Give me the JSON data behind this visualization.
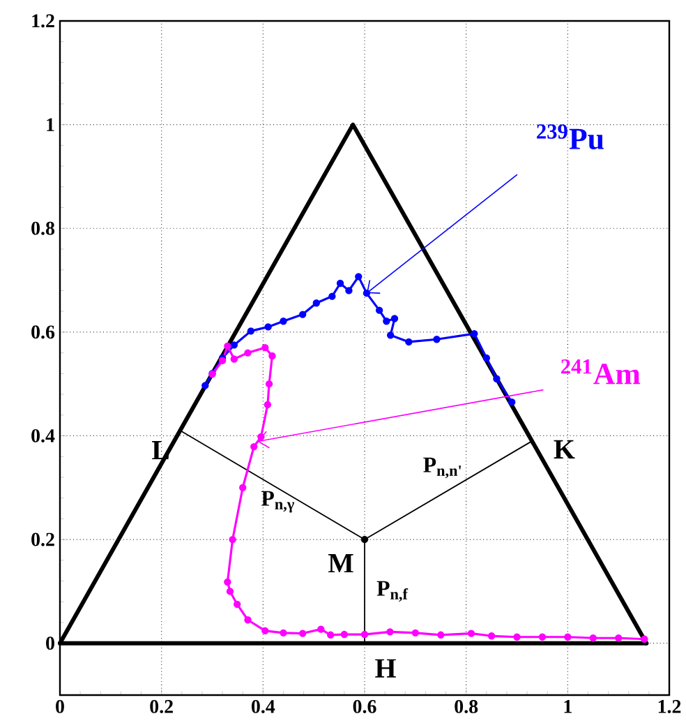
{
  "chart_data": {
    "type": "line",
    "xlim": [
      0,
      1.2
    ],
    "ylim": [
      -0.1,
      1.2
    ],
    "xticks": [
      0,
      0.2,
      0.4,
      0.6,
      0.8,
      1,
      1.2
    ],
    "yticks": [
      0,
      0.2,
      0.4,
      0.6,
      0.8,
      1,
      1.2
    ],
    "grid": true,
    "series": [
      {
        "color": "#000000",
        "marker": "none",
        "x": [
          0,
          0.577,
          1.155
        ],
        "values": [
          0,
          1,
          0
        ]
      },
      {
        "color": "#000000",
        "marker": "none",
        "x": [
          0,
          1.155
        ],
        "values": [
          0,
          0
        ]
      },
      {
        "color": "#000000",
        "marker": "none",
        "x": [
          0.237,
          0.6,
          0.93,
          0.6,
          0.6
        ],
        "values": [
          0.41,
          0.2,
          0.39,
          0.2,
          0
        ]
      },
      {
        "type": "scatter",
        "color": "#000000",
        "marker": "circle",
        "x": [
          0.6
        ],
        "values": [
          0.2
        ]
      },
      {
        "color": "#0000ff",
        "marker": "circle",
        "x": [
          0.286,
          0.3,
          0.32,
          0.343,
          0.376,
          0.41,
          0.44,
          0.478,
          0.505,
          0.536,
          0.552,
          0.569,
          0.588,
          0.604,
          0.629,
          0.643,
          0.659,
          0.651,
          0.687,
          0.742,
          0.816,
          0.84,
          0.86,
          0.89
        ],
        "values": [
          0.497,
          0.52,
          0.55,
          0.575,
          0.602,
          0.61,
          0.621,
          0.634,
          0.656,
          0.669,
          0.694,
          0.68,
          0.707,
          0.675,
          0.642,
          0.621,
          0.626,
          0.594,
          0.581,
          0.586,
          0.597,
          0.55,
          0.51,
          0.465
        ]
      },
      {
        "color": "#ff00ff",
        "marker": "circle",
        "x": [
          0.3,
          0.32,
          0.33,
          0.343,
          0.37,
          0.404,
          0.418,
          0.412,
          0.409,
          0.396,
          0.382,
          0.36,
          0.34,
          0.33,
          0.335,
          0.349,
          0.37,
          0.404,
          0.44,
          0.478,
          0.514,
          0.533,
          0.56,
          0.6,
          0.65,
          0.7,
          0.75,
          0.81,
          0.85,
          0.9,
          0.95,
          1.0,
          1.05,
          1.1,
          1.151
        ],
        "values": [
          0.519,
          0.545,
          0.573,
          0.548,
          0.56,
          0.57,
          0.554,
          0.5,
          0.46,
          0.398,
          0.379,
          0.3,
          0.2,
          0.118,
          0.1,
          0.075,
          0.045,
          0.024,
          0.02,
          0.019,
          0.027,
          0.016,
          0.017,
          0.017,
          0.022,
          0.02,
          0.016,
          0.019,
          0.014,
          0.012,
          0.012,
          0.012,
          0.01,
          0.01,
          0.008
        ]
      }
    ],
    "annotations": [
      {
        "text": "$^{239}$Pu",
        "x": 0.604,
        "y": 0.675
      },
      {
        "text": "$^{241}$Am",
        "x": 0.389,
        "y": 0.389
      },
      {
        "text": "M",
        "x": 0.6,
        "y": 0.2
      },
      {
        "text": "L",
        "x": 0.237,
        "y": 0.41
      },
      {
        "text": "K",
        "x": 0.93,
        "y": 0.39
      },
      {
        "text": "H",
        "x": 0.6,
        "y": 0
      },
      "P$_{n,γ}$",
      "P$_{n,n'}$",
      "P$_{n,f}$"
    ]
  }
}
